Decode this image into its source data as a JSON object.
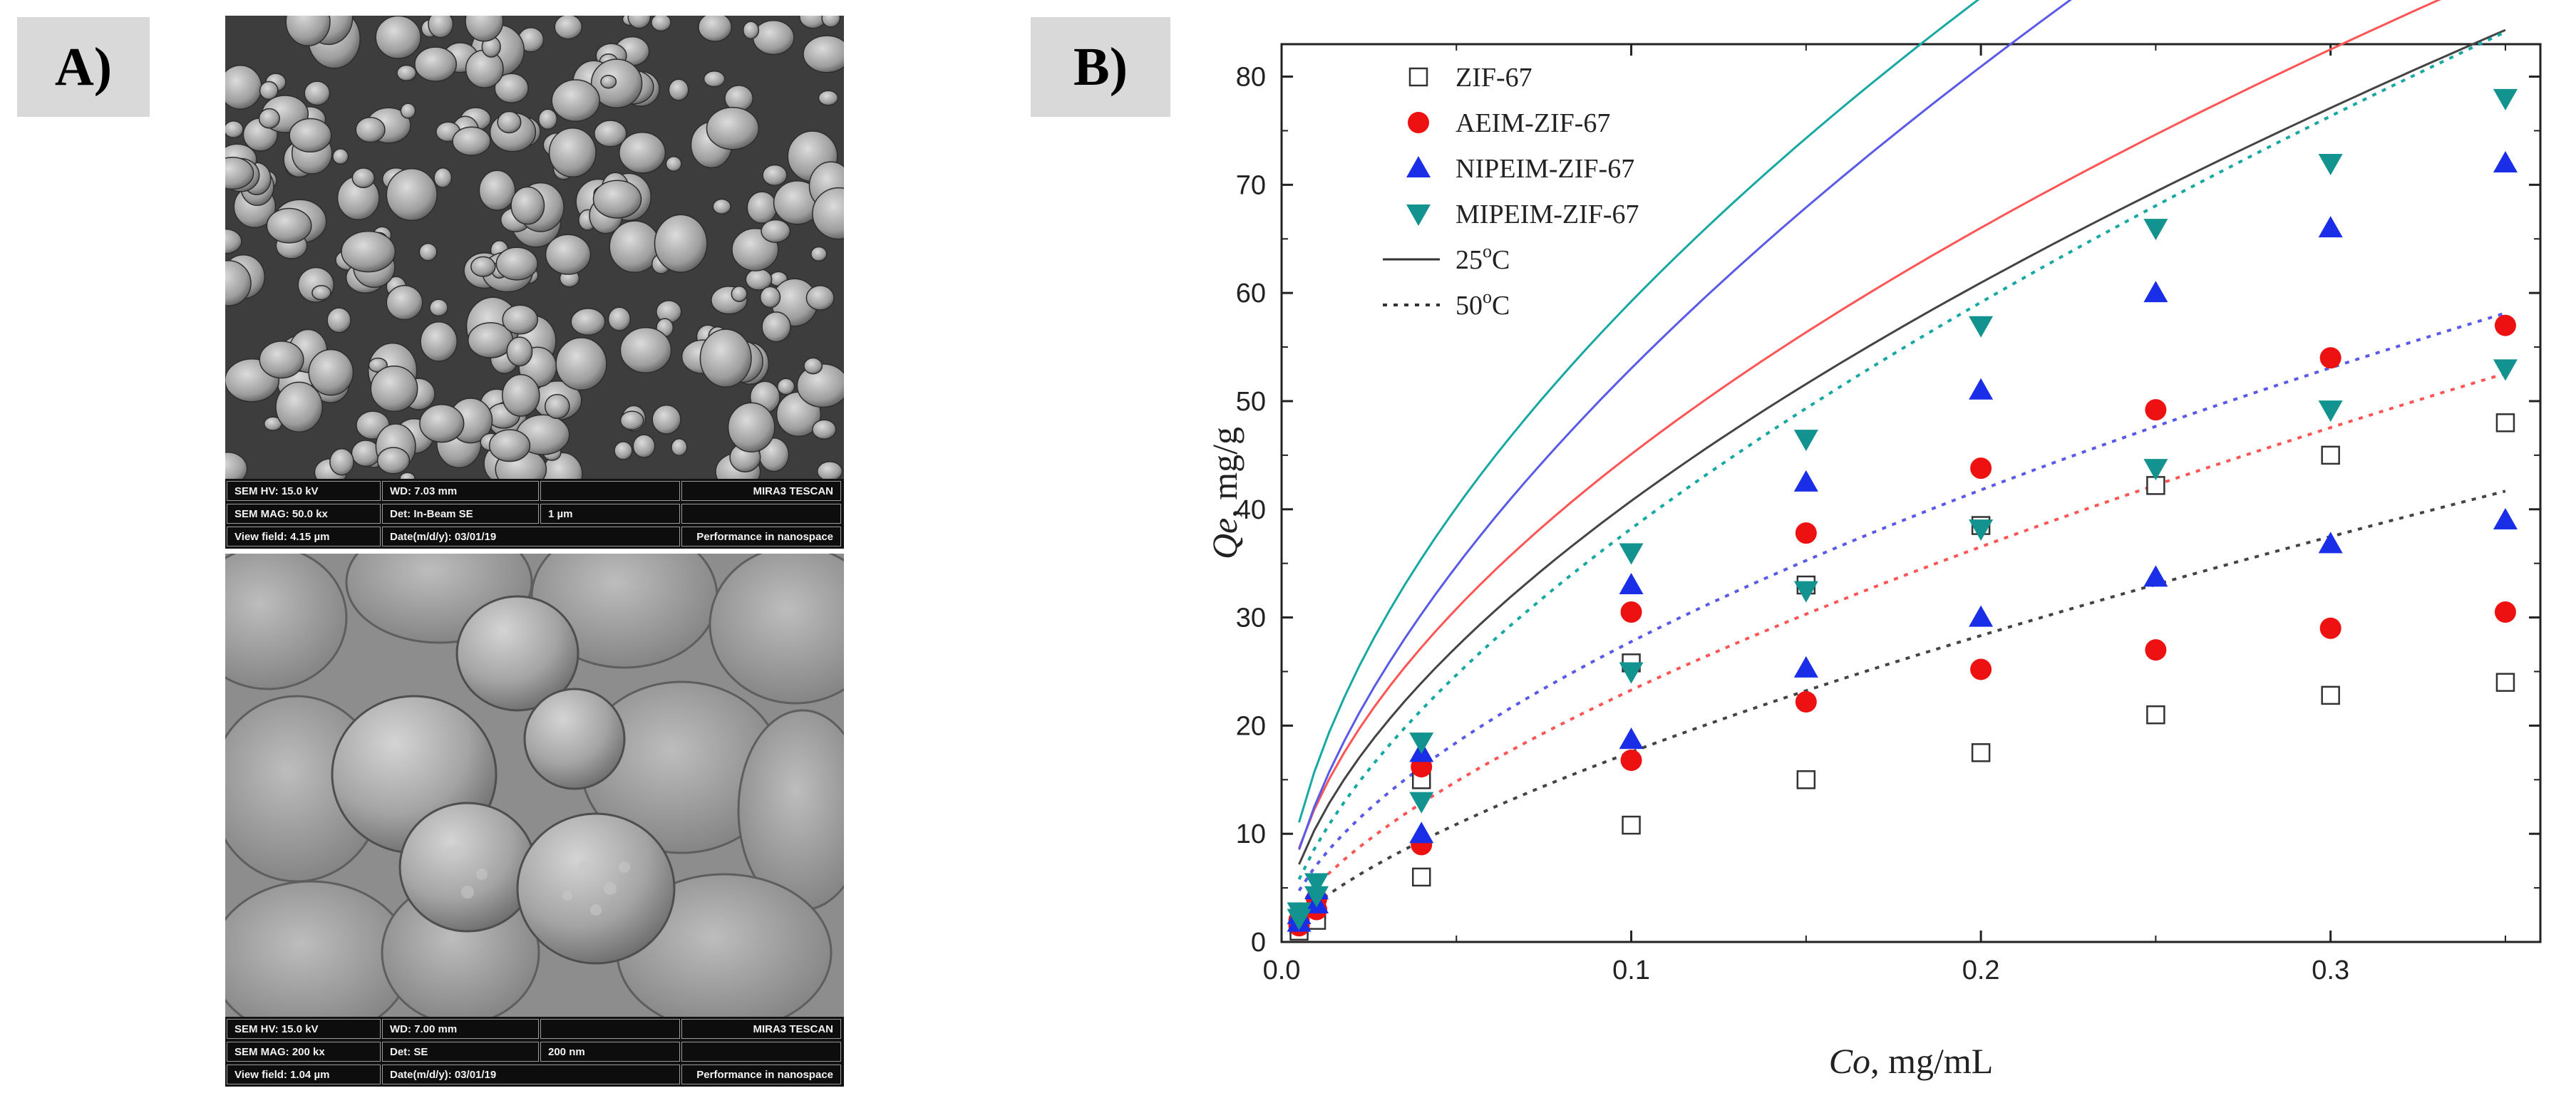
{
  "panels": {
    "a_label": "A)",
    "b_label": "B)"
  },
  "sem_top": {
    "hv": "SEM HV: 15.0 kV",
    "wd": "WD: 7.03 mm",
    "brand": "MIRA3 TESCAN",
    "mag": "SEM MAG: 50.0 kx",
    "det": "Det: In-Beam SE",
    "scale": "1 µm",
    "view_field": "View field: 4.15 µm",
    "date": "Date(m/d/y): 03/01/19",
    "slogan": "Performance in nanospace"
  },
  "sem_bottom": {
    "hv": "SEM HV: 15.0 kV",
    "wd": "WD: 7.00 mm",
    "brand": "MIRA3 TESCAN",
    "mag": "SEM MAG: 200 kx",
    "det": "Det: SE",
    "scale": "200 nm",
    "view_field": "View field: 1.04 µm",
    "date": "Date(m/d/y): 03/01/19",
    "slogan": "Performance in nanospace"
  },
  "chart_data": {
    "type": "scatter",
    "xlabel_italic": "Co",
    "xlabel_rest": ", mg/mL",
    "ylabel_italic": "Qe",
    "ylabel_rest": ", mg/g",
    "xlim": [
      0,
      0.36
    ],
    "ylim": [
      0,
      83
    ],
    "x_ticks": [
      0.0,
      0.1,
      0.2,
      0.3
    ],
    "x_tick_labels": [
      "0.0",
      "0.1",
      "0.2",
      "0.3"
    ],
    "y_ticks": [
      0,
      10,
      20,
      30,
      40,
      50,
      60,
      70,
      80
    ],
    "y_tick_labels": [
      "0",
      "10",
      "20",
      "30",
      "40",
      "50",
      "60",
      "70",
      "80"
    ],
    "x": [
      0.005,
      0.01,
      0.04,
      0.1,
      0.15,
      0.2,
      0.25,
      0.3,
      0.35
    ],
    "series": [
      {
        "name": "ZIF-67",
        "marker": "square-open",
        "color": "#444444",
        "values_25C": [
          1.5,
          3.0,
          15.0,
          25.8,
          33.0,
          38.5,
          42.2,
          45.0,
          48.0
        ],
        "values_50C": [
          1.0,
          2.0,
          6.0,
          10.8,
          15.0,
          17.5,
          21.0,
          22.8,
          24.0
        ],
        "fit_25C": {
          "k": 155.0,
          "n": 0.58
        },
        "fit_50C": {
          "k": 86.0,
          "n": 0.69
        }
      },
      {
        "name": "AEIM-ZIF-67",
        "marker": "circle",
        "color": "#ee1111",
        "values_25C": [
          2.0,
          4.0,
          16.2,
          30.5,
          37.8,
          43.8,
          49.2,
          54.0,
          57.0
        ],
        "values_50C": [
          1.5,
          3.0,
          9.0,
          16.8,
          22.2,
          25.2,
          27.0,
          29.0,
          30.5
        ],
        "fit_25C": {
          "k": 160.0,
          "n": 0.55
        },
        "fit_50C": {
          "k": 104.0,
          "n": 0.65
        },
        "fit_color": "#ff5555"
      },
      {
        "name": "NIPEIM-ZIF-67",
        "marker": "triangle-up",
        "color": "#1a2ee8",
        "values_25C": [
          2.5,
          4.8,
          17.5,
          33.0,
          42.5,
          51.0,
          60.0,
          66.0,
          72.0
        ],
        "values_50C": [
          1.8,
          3.5,
          10.0,
          18.7,
          25.3,
          30.0,
          33.7,
          36.8,
          39.0
        ],
        "fit_25C": {
          "k": 216.0,
          "n": 0.61
        },
        "fit_50C": {
          "k": 108.0,
          "n": 0.59
        },
        "fit_color": "#5a5ae8"
      },
      {
        "name": "MIPEIM-ZIF-67",
        "marker": "triangle-down",
        "color": "#13938f",
        "values_25C": [
          2.8,
          5.5,
          18.5,
          36.0,
          46.5,
          57.0,
          66.0,
          72.0,
          78.0
        ],
        "values_50C": [
          2.2,
          4.3,
          13.0,
          25.0,
          32.5,
          38.2,
          43.8,
          49.2,
          53.0
        ],
        "fit_25C": {
          "k": 215.0,
          "n": 0.56
        },
        "fit_50C": {
          "k": 163.0,
          "n": 0.63
        },
        "fit_color": "#17a8a3"
      }
    ],
    "legend_line_labels": [
      {
        "main": "25",
        "sup": "o",
        "unit": "C",
        "style": "solid"
      },
      {
        "main": "50",
        "sup": "o",
        "unit": "C",
        "style": "dotted"
      }
    ],
    "legend_position": "top-left"
  }
}
